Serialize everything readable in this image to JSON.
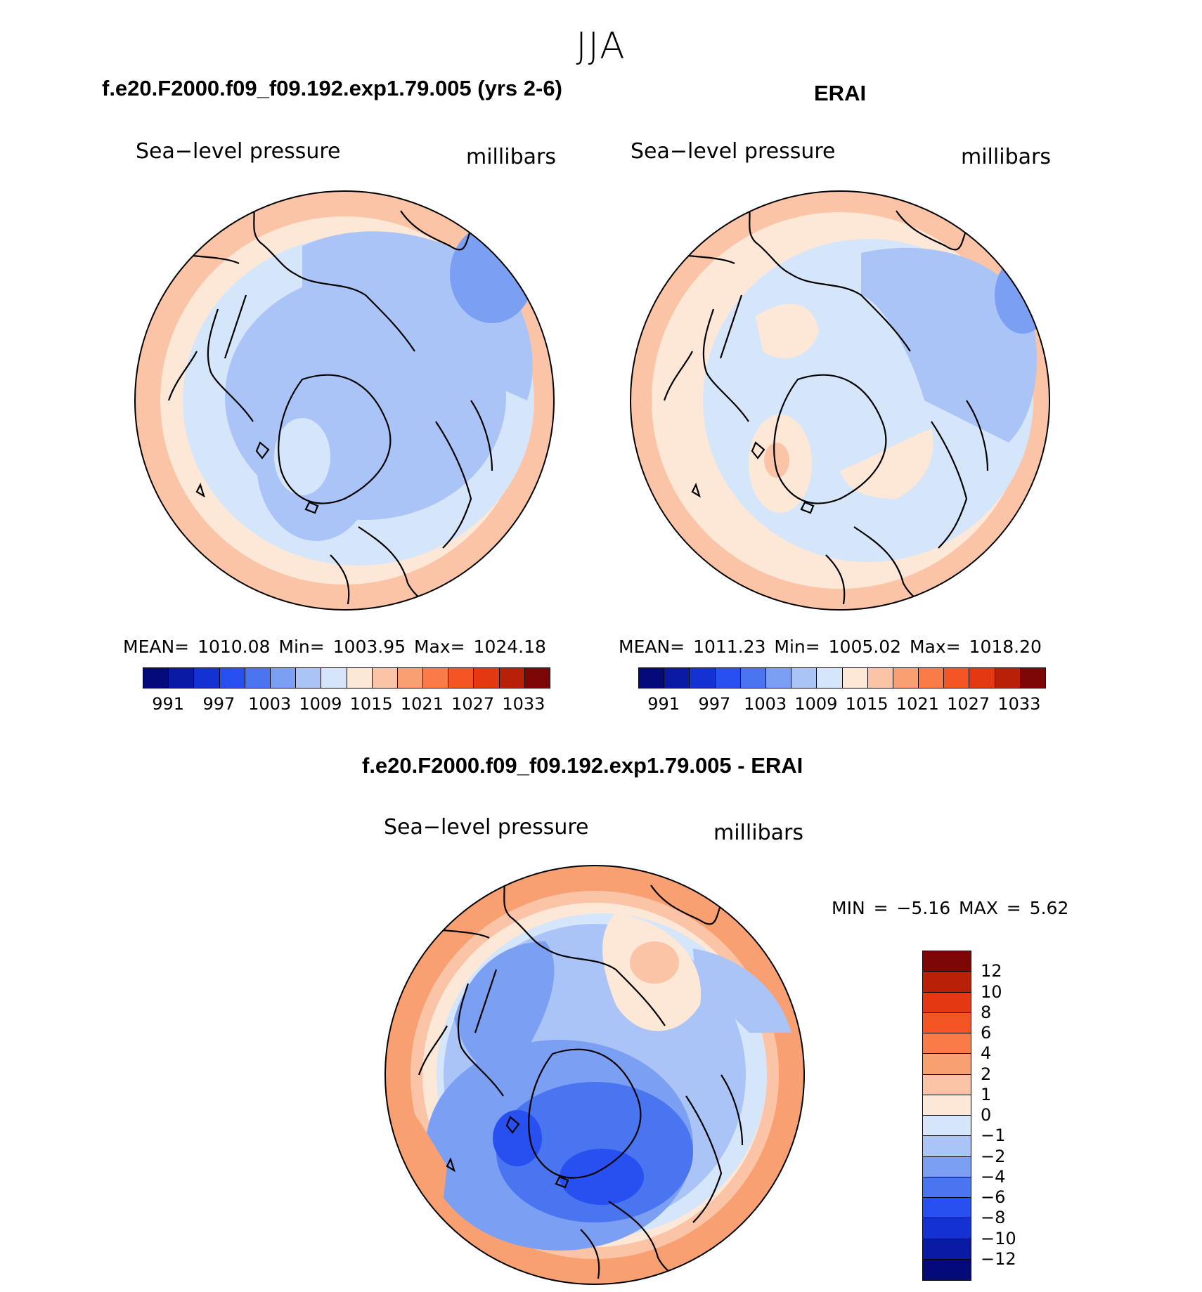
{
  "figure_title": "JJA",
  "panels": {
    "model": {
      "title": "f.e20.F2000.f09_f09.192.exp1.79.005 (yrs 2-6)",
      "variable": "Sea−level pressure",
      "units": "millibars",
      "stats": "MEAN=  1010.08   Min=  1003.95   Max=  1024.18"
    },
    "obs": {
      "title": "ERAI",
      "variable": "Sea−level pressure",
      "units": "millibars",
      "stats": "MEAN=  1011.23   Min=  1005.02   Max=  1018.20"
    },
    "diff": {
      "title": "f.e20.F2000.f09_f09.192.exp1.79.005 - ERAI",
      "variable": "Sea−level pressure",
      "units": "millibars",
      "stats": "MIN =    −5.16  MAX =     5.62"
    }
  },
  "colors": {
    "abs_scale": [
      "#050a7a",
      "#0a1aa5",
      "#1432d2",
      "#2850f0",
      "#4a75f0",
      "#7b9ff2",
      "#aac4f7",
      "#d6e6fa",
      "#fde8d8",
      "#fcc4a6",
      "#f9a072",
      "#f97c48",
      "#f55524",
      "#e33812",
      "#b82108",
      "#7d0606"
    ],
    "diff_scale": [
      "#7d0606",
      "#b82108",
      "#e33812",
      "#f55524",
      "#f97c48",
      "#f9a072",
      "#fcc4a6",
      "#fde8d8",
      "#d6e6fa",
      "#aac4f7",
      "#7b9ff2",
      "#4a75f0",
      "#2850f0",
      "#1432d2",
      "#0a1aa5",
      "#050a7a"
    ]
  },
  "chart_data": [
    {
      "type": "heatmap",
      "name": "model_slp",
      "title": "f.e20.F2000.f09_f09.192.exp1.79.005 (yrs 2-6)",
      "projection": "north-polar-stereographic",
      "variable": "Sea-level pressure",
      "units": "millibars",
      "mean": 1010.08,
      "min": 1003.95,
      "max": 1024.18,
      "colorbar_levels": [
        991,
        997,
        1003,
        1009,
        1015,
        1021,
        1027,
        1033
      ],
      "colorbar_tick_labels": [
        "991",
        "997",
        "1003",
        "1009",
        "1015",
        "1021",
        "1027",
        "1033"
      ]
    },
    {
      "type": "heatmap",
      "name": "erai_slp",
      "title": "ERAI",
      "projection": "north-polar-stereographic",
      "variable": "Sea-level pressure",
      "units": "millibars",
      "mean": 1011.23,
      "min": 1005.02,
      "max": 1018.2,
      "colorbar_levels": [
        991,
        997,
        1003,
        1009,
        1015,
        1021,
        1027,
        1033
      ],
      "colorbar_tick_labels": [
        "991",
        "997",
        "1003",
        "1009",
        "1015",
        "1021",
        "1027",
        "1033"
      ]
    },
    {
      "type": "heatmap",
      "name": "difference_slp",
      "title": "f.e20.F2000.f09_f09.192.exp1.79.005 - ERAI",
      "projection": "north-polar-stereographic",
      "variable": "Sea-level pressure",
      "units": "millibars",
      "min": -5.16,
      "max": 5.62,
      "colorbar_levels": [
        12,
        10,
        8,
        6,
        4,
        2,
        1,
        0,
        -1,
        -2,
        -4,
        -6,
        -8,
        -10,
        -12
      ],
      "colorbar_tick_labels": [
        "12",
        "10",
        "8",
        "6",
        "4",
        "2",
        "1",
        "0",
        "−1",
        "−2",
        "−4",
        "−6",
        "−8",
        "−10",
        "−12"
      ]
    }
  ]
}
